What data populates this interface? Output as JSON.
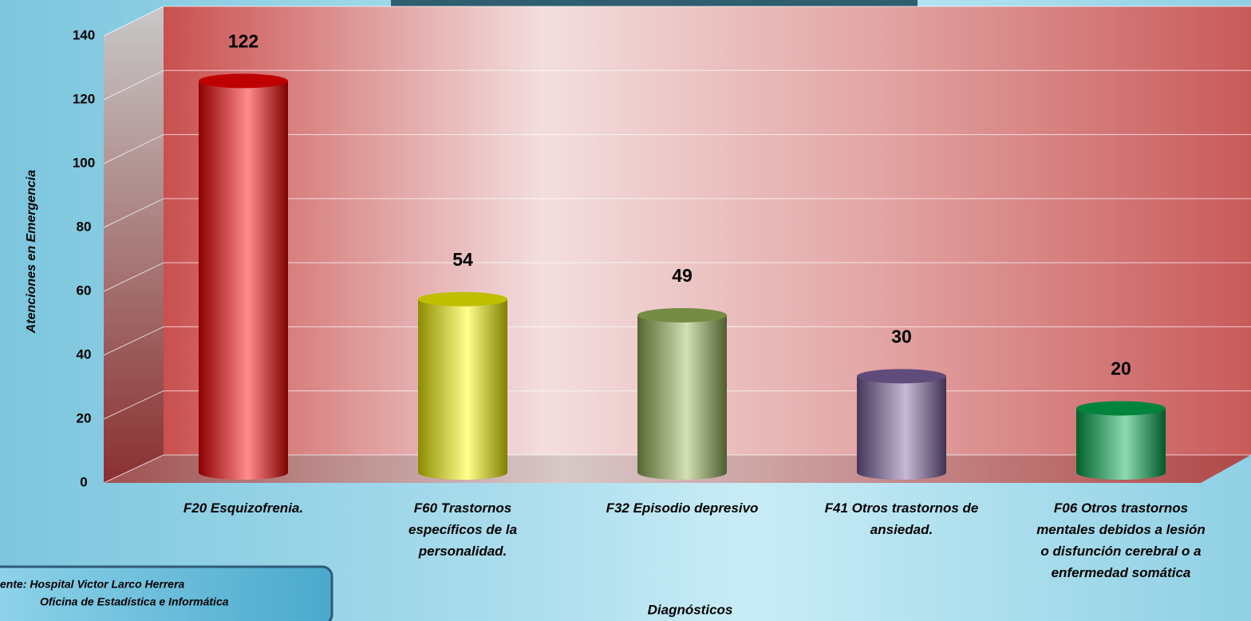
{
  "chart_data": {
    "type": "bar",
    "y_label": "Atenciones en Emergencia",
    "x_label": "Diagnósticos",
    "categories": [
      "F20 Esquizofrenia.",
      "F60 Trastornos específicos de la personalidad.",
      "F32 Episodio depresivo",
      "F41 Otros trastornos de ansiedad.",
      "F06 Otros trastornos mentales debidos a lesión o disfunción cerebral o a enfermedad somática"
    ],
    "values": [
      122,
      54,
      49,
      30,
      20
    ],
    "colors": [
      "#ff0000",
      "#ffff00",
      "#9bbb59",
      "#8064a2",
      "#00b050"
    ],
    "ylim": [
      0,
      140
    ],
    "yticks": [
      0,
      20,
      40,
      60,
      80,
      100,
      120,
      140
    ],
    "grid": true,
    "source": [
      "ente:  Hospital Victor Larco Herrera",
      "Oficina de Estadística e Informática"
    ]
  }
}
